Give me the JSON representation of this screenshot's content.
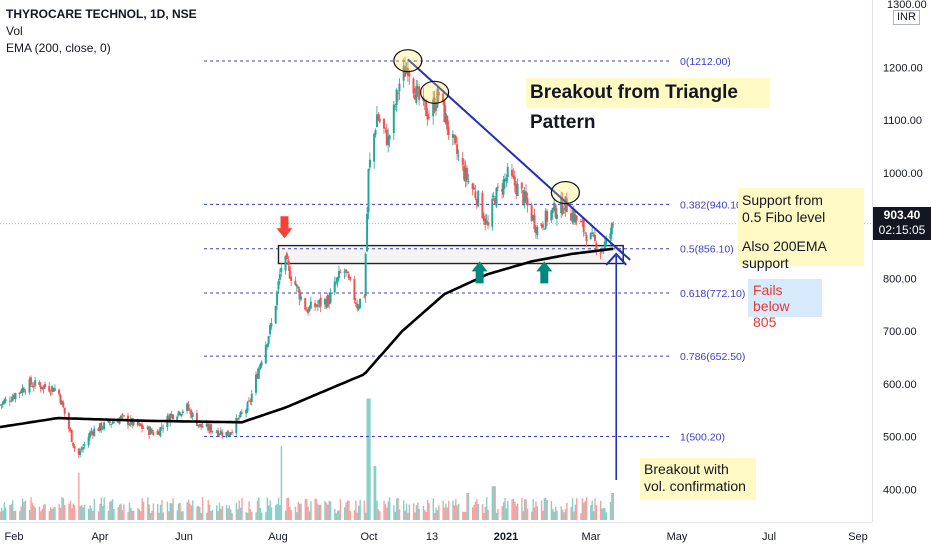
{
  "header": {
    "symbol_line": "THYROCARE TECHNOL, 1D, NSE",
    "vol_line": "Vol",
    "ema_line": "EMA (200, close, 0)"
  },
  "price_axis": {
    "currency": "INR",
    "top_partial_label": "1300.00",
    "ticks": [
      "1200.00",
      "1100.00",
      "1000.00",
      "800.00",
      "700.00",
      "600.00",
      "500.00",
      "400.00"
    ],
    "last_price": "903.40",
    "countdown": "02:15:05"
  },
  "time_axis": {
    "ticks": [
      "Feb",
      "Apr",
      "Jun",
      "Aug",
      "Oct",
      "13",
      "2021",
      "Mar",
      "May",
      "Jul",
      "Sep"
    ]
  },
  "fib_levels": [
    {
      "label": "0(1212.00)",
      "value": 1212.0
    },
    {
      "label": "0.382(940.10)",
      "value": 940.1
    },
    {
      "label": "0.5(856.10)",
      "value": 856.1
    },
    {
      "label": "0.618(772.10)",
      "value": 772.1
    },
    {
      "label": "0.786(652.50)",
      "value": 652.5
    },
    {
      "label": "1(500.20)",
      "value": 500.2
    }
  ],
  "annotations": {
    "title": "Breakout from Triangle Pattern",
    "support_line1": "Support from",
    "support_line2": "0.5 Fibo level",
    "ema_support": "Also 200EMA support",
    "fails_line1": "Fails below",
    "fails_line2": "805",
    "breakout_line1": "Breakout with",
    "breakout_line2": "vol. confirmation"
  },
  "colors": {
    "up": "#26a69a",
    "down": "#ef5350",
    "fib": "#3d3dcc",
    "trendline": "#2330b8",
    "ema": "#000000",
    "arrow_up": "#00897b",
    "arrow_down": "#f44336",
    "fails_text": "#e53935",
    "fails_bg": "#d6eafc"
  },
  "chart_data": {
    "type": "candlestick",
    "title": "THYROCARE TECHNOL, 1D, NSE",
    "ylim": [
      350,
      1320
    ],
    "x_range": [
      "2020-01-20",
      "2021-10-01"
    ],
    "anchors": [
      {
        "date": "2020-01-20",
        "close": 560
      },
      {
        "date": "2020-02-10",
        "close": 600
      },
      {
        "date": "2020-03-01",
        "close": 590
      },
      {
        "date": "2020-03-15",
        "close": 460
      },
      {
        "date": "2020-03-25",
        "close": 510
      },
      {
        "date": "2020-04-15",
        "close": 535
      },
      {
        "date": "2020-05-10",
        "close": 505
      },
      {
        "date": "2020-05-20",
        "close": 540
      },
      {
        "date": "2020-06-01",
        "close": 555
      },
      {
        "date": "2020-06-10",
        "close": 520
      },
      {
        "date": "2020-06-30",
        "close": 505
      },
      {
        "date": "2020-07-15",
        "close": 560
      },
      {
        "date": "2020-07-25",
        "close": 660
      },
      {
        "date": "2020-08-01",
        "close": 720
      },
      {
        "date": "2020-08-08",
        "close": 840
      },
      {
        "date": "2020-08-15",
        "close": 800
      },
      {
        "date": "2020-08-25",
        "close": 740
      },
      {
        "date": "2020-09-10",
        "close": 760
      },
      {
        "date": "2020-09-20",
        "close": 820
      },
      {
        "date": "2020-09-30",
        "close": 750
      },
      {
        "date": "2020-10-05",
        "close": 770
      },
      {
        "date": "2020-10-08",
        "close": 1000
      },
      {
        "date": "2020-10-14",
        "close": 1110
      },
      {
        "date": "2020-10-22",
        "close": 1060
      },
      {
        "date": "2020-10-30",
        "close": 1170
      },
      {
        "date": "2020-11-05",
        "close": 1205
      },
      {
        "date": "2020-11-12",
        "close": 1140
      },
      {
        "date": "2020-11-20",
        "close": 1110
      },
      {
        "date": "2020-11-27",
        "close": 1150
      },
      {
        "date": "2020-12-05",
        "close": 1070
      },
      {
        "date": "2020-12-15",
        "close": 1000
      },
      {
        "date": "2020-12-25",
        "close": 950
      },
      {
        "date": "2021-01-01",
        "close": 895
      },
      {
        "date": "2021-01-05",
        "close": 950
      },
      {
        "date": "2021-01-15",
        "close": 995
      },
      {
        "date": "2021-01-25",
        "close": 960
      },
      {
        "date": "2021-02-05",
        "close": 895
      },
      {
        "date": "2021-02-15",
        "close": 925
      },
      {
        "date": "2021-02-25",
        "close": 940
      },
      {
        "date": "2021-03-05",
        "close": 910
      },
      {
        "date": "2021-03-15",
        "close": 875
      },
      {
        "date": "2021-03-22",
        "close": 855
      },
      {
        "date": "2021-03-27",
        "close": 870
      },
      {
        "date": "2021-03-31",
        "close": 903.4
      }
    ],
    "ema200_anchors": [
      {
        "date": "2020-01-20",
        "value": 518
      },
      {
        "date": "2020-03-01",
        "value": 535
      },
      {
        "date": "2020-05-01",
        "value": 530
      },
      {
        "date": "2020-07-10",
        "value": 527
      },
      {
        "date": "2020-08-10",
        "value": 555
      },
      {
        "date": "2020-09-10",
        "value": 590
      },
      {
        "date": "2020-10-05",
        "value": 618
      },
      {
        "date": "2020-11-01",
        "value": 700
      },
      {
        "date": "2020-12-01",
        "value": 770
      },
      {
        "date": "2021-01-01",
        "value": 808
      },
      {
        "date": "2021-02-01",
        "value": 832
      },
      {
        "date": "2021-03-01",
        "value": 846
      },
      {
        "date": "2021-03-31",
        "value": 856
      }
    ],
    "volume_spikes": [
      {
        "date": "2020-03-15",
        "rel": 0.35
      },
      {
        "date": "2020-08-08",
        "rel": 0.55
      },
      {
        "date": "2020-10-08",
        "rel": 0.9
      },
      {
        "date": "2020-10-12",
        "rel": 0.4
      },
      {
        "date": "2020-12-18",
        "rel": 0.2
      },
      {
        "date": "2021-01-05",
        "rel": 0.25
      },
      {
        "date": "2021-03-31",
        "rel": 0.2
      }
    ],
    "trendline": [
      {
        "date": "2020-11-05",
        "value": 1215
      },
      {
        "date": "2021-04-01",
        "value": 855
      }
    ],
    "support_zone": [
      {
        "date": "2020-08-05",
        "low": 828
      },
      {
        "date": "2021-03-31",
        "high": 862
      }
    ],
    "breakout_marker": {
      "date": "2021-03-31",
      "value": 850
    },
    "up_arrows": [
      {
        "date": "2020-12-26",
        "value": 832
      },
      {
        "date": "2021-02-10",
        "value": 832
      }
    ],
    "down_arrow": {
      "date": "2020-08-05",
      "value": 895
    },
    "circles": [
      {
        "date": "2020-11-05",
        "value": 1205
      },
      {
        "date": "2020-11-24",
        "value": 1145
      },
      {
        "date": "2021-02-25",
        "value": 955
      }
    ]
  }
}
